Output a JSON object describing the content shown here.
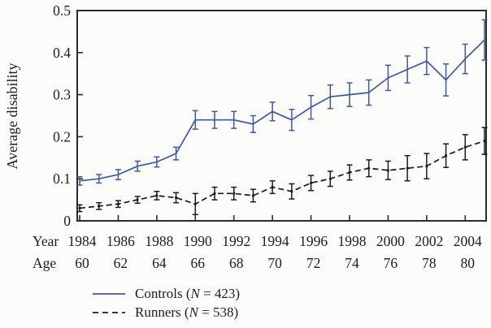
{
  "figure": {
    "background": "#fcfcfa",
    "frame_color": "#2b2b2b",
    "ink_color": "#1d1d1d"
  },
  "xrow_labels": {
    "year": "Year",
    "age": "Age"
  },
  "legend": [
    {
      "key": "controls",
      "label": "Controls",
      "paren_open": "(",
      "n_symbol": "N",
      "n_value": " = 423)",
      "color": "#3c58a7",
      "style": "solid"
    },
    {
      "key": "runners",
      "label": "Runners",
      "paren_open": "(",
      "n_symbol": "N",
      "n_value": " = 538)",
      "color": "#1c1c1c",
      "style": "dashed"
    }
  ],
  "chart_data": {
    "type": "line",
    "title": "",
    "ylabel": "Average disability",
    "xlabel": "Year / Age",
    "ylim": [
      0,
      0.5
    ],
    "yticks": [
      0,
      0.1,
      0.2,
      0.3,
      0.4,
      0.5
    ],
    "ytick_labels": [
      "0",
      "0.1",
      "0.2",
      "0.3",
      "0.4",
      "0.5"
    ],
    "x_years": [
      1984,
      1985,
      1986,
      1987,
      1988,
      1989,
      1990,
      1991,
      1992,
      1993,
      1994,
      1995,
      1996,
      1997,
      1998,
      1999,
      2000,
      2001,
      2002,
      2003,
      2004,
      2005
    ],
    "xtick_years": [
      1984,
      1986,
      1988,
      1990,
      1992,
      1994,
      1996,
      1998,
      2000,
      2002,
      2004
    ],
    "xtick_ages": [
      60,
      62,
      64,
      66,
      68,
      70,
      72,
      74,
      76,
      78,
      80
    ],
    "grid": false,
    "legend_position": "bottom-left",
    "error_bars": true,
    "series": [
      {
        "key": "controls",
        "name": "Controls (N = 423)",
        "color": "#3c58a7",
        "style": "solid",
        "values": [
          0.095,
          0.1,
          0.11,
          0.13,
          0.14,
          0.16,
          0.24,
          0.24,
          0.24,
          0.23,
          0.26,
          0.24,
          0.27,
          0.295,
          0.3,
          0.305,
          0.34,
          0.36,
          0.38,
          0.335,
          0.385,
          0.43
        ],
        "errors": [
          0.01,
          0.01,
          0.012,
          0.012,
          0.012,
          0.015,
          0.022,
          0.02,
          0.02,
          0.02,
          0.022,
          0.025,
          0.028,
          0.028,
          0.028,
          0.03,
          0.03,
          0.032,
          0.032,
          0.038,
          0.035,
          0.048
        ]
      },
      {
        "key": "runners",
        "name": "Runners (N = 538)",
        "color": "#1c1c1c",
        "style": "dashed",
        "values": [
          0.03,
          0.035,
          0.04,
          0.05,
          0.06,
          0.055,
          0.04,
          0.065,
          0.065,
          0.06,
          0.08,
          0.07,
          0.09,
          0.1,
          0.115,
          0.125,
          0.12,
          0.125,
          0.13,
          0.155,
          0.175,
          0.19
        ],
        "errors": [
          0.008,
          0.008,
          0.008,
          0.008,
          0.01,
          0.012,
          0.025,
          0.015,
          0.015,
          0.015,
          0.015,
          0.018,
          0.018,
          0.018,
          0.018,
          0.02,
          0.022,
          0.03,
          0.03,
          0.028,
          0.03,
          0.032
        ]
      }
    ]
  }
}
